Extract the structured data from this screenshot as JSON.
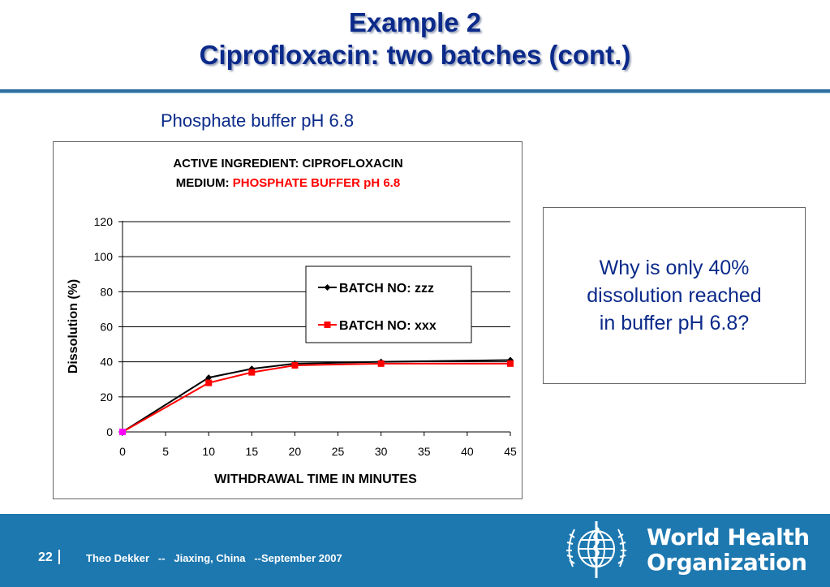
{
  "slide": {
    "title_line1": "Example 2",
    "title_line2": "Ciprofloxacin: two batches (cont.)",
    "subtitle": "Phosphate buffer pH 6.8",
    "question": "Why is only 40% dissolution reached in buffer pH 6.8?",
    "page_number": "22",
    "footer_text": "Theo Dekker   --   Jiaxing, China   --September 2007",
    "org_name_line1": "World Health",
    "org_name_line2": "Organization"
  },
  "colors": {
    "title": "#0b2a8a",
    "footer_bar": "#1d78b0",
    "series_zzz": "#000000",
    "series_xxx": "#ff0000",
    "medium_value": "#ff0000"
  },
  "chart_data": {
    "type": "line",
    "title_line1": "ACTIVE INGREDIENT:  CIPROFLOXACIN",
    "title_line2_label": "MEDIUM:",
    "title_line2_value": "PHOSPHATE BUFFER pH 6.8",
    "xlabel": "WITHDRAWAL TIME IN MINUTES",
    "ylabel": "Dissolution (%)",
    "xlim": [
      0,
      45
    ],
    "ylim": [
      0,
      120
    ],
    "xticks": [
      0,
      5,
      10,
      15,
      20,
      25,
      30,
      35,
      40,
      45
    ],
    "yticks": [
      0,
      20,
      40,
      60,
      80,
      100,
      120
    ],
    "grid": "horizontal",
    "legend_position": "inside-right",
    "series": [
      {
        "name": "BATCH NO: zzz",
        "color": "#000000",
        "marker": "diamond",
        "x": [
          0,
          10,
          15,
          20,
          30,
          45
        ],
        "y": [
          0,
          31,
          36,
          39,
          40,
          41
        ]
      },
      {
        "name": "BATCH NO:  xxx",
        "color": "#ff0000",
        "marker": "square",
        "x": [
          0,
          10,
          15,
          20,
          30,
          45
        ],
        "y": [
          0,
          28,
          34,
          38,
          39,
          39
        ]
      }
    ]
  }
}
